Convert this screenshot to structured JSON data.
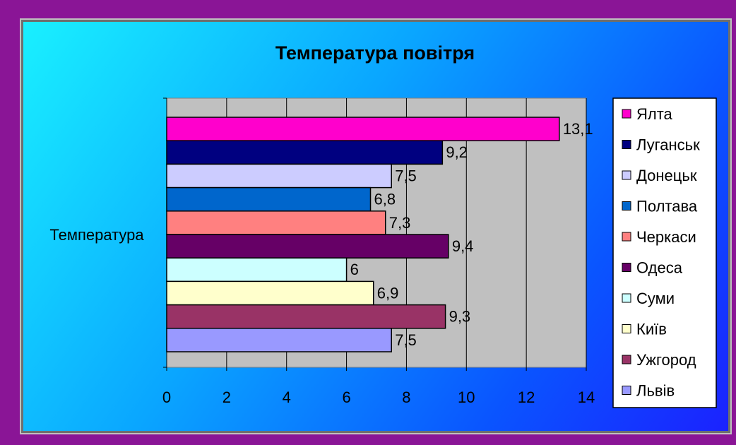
{
  "chart_data": {
    "type": "bar",
    "orientation": "horizontal",
    "title": "Температура повітря",
    "category_label": "Температура",
    "xlim": [
      0,
      14
    ],
    "x_ticks": [
      0,
      2,
      4,
      6,
      8,
      10,
      12,
      14
    ],
    "grid": true,
    "legend_position": "right",
    "series": [
      {
        "name": "Ялта",
        "value": 13.1,
        "label": "13,1",
        "color": "#ff00cc"
      },
      {
        "name": "Луганськ",
        "value": 9.2,
        "label": "9,2",
        "color": "#000080"
      },
      {
        "name": "Донецьк",
        "value": 7.5,
        "label": "7,5",
        "color": "#ccccff"
      },
      {
        "name": "Полтава",
        "value": 6.8,
        "label": "6,8",
        "color": "#0066cc"
      },
      {
        "name": "Черкаси",
        "value": 7.3,
        "label": "7,3",
        "color": "#ff8080"
      },
      {
        "name": "Одеса",
        "value": 9.4,
        "label": "9,4",
        "color": "#660066"
      },
      {
        "name": "Суми",
        "value": 6,
        "label": "6",
        "color": "#ccffff"
      },
      {
        "name": "Київ",
        "value": 6.9,
        "label": "6,9",
        "color": "#ffffcc"
      },
      {
        "name": "Ужгород",
        "value": 9.3,
        "label": "9,3",
        "color": "#993366"
      },
      {
        "name": "Львів",
        "value": 7.5,
        "label": "7,5",
        "color": "#9999ff"
      }
    ]
  }
}
